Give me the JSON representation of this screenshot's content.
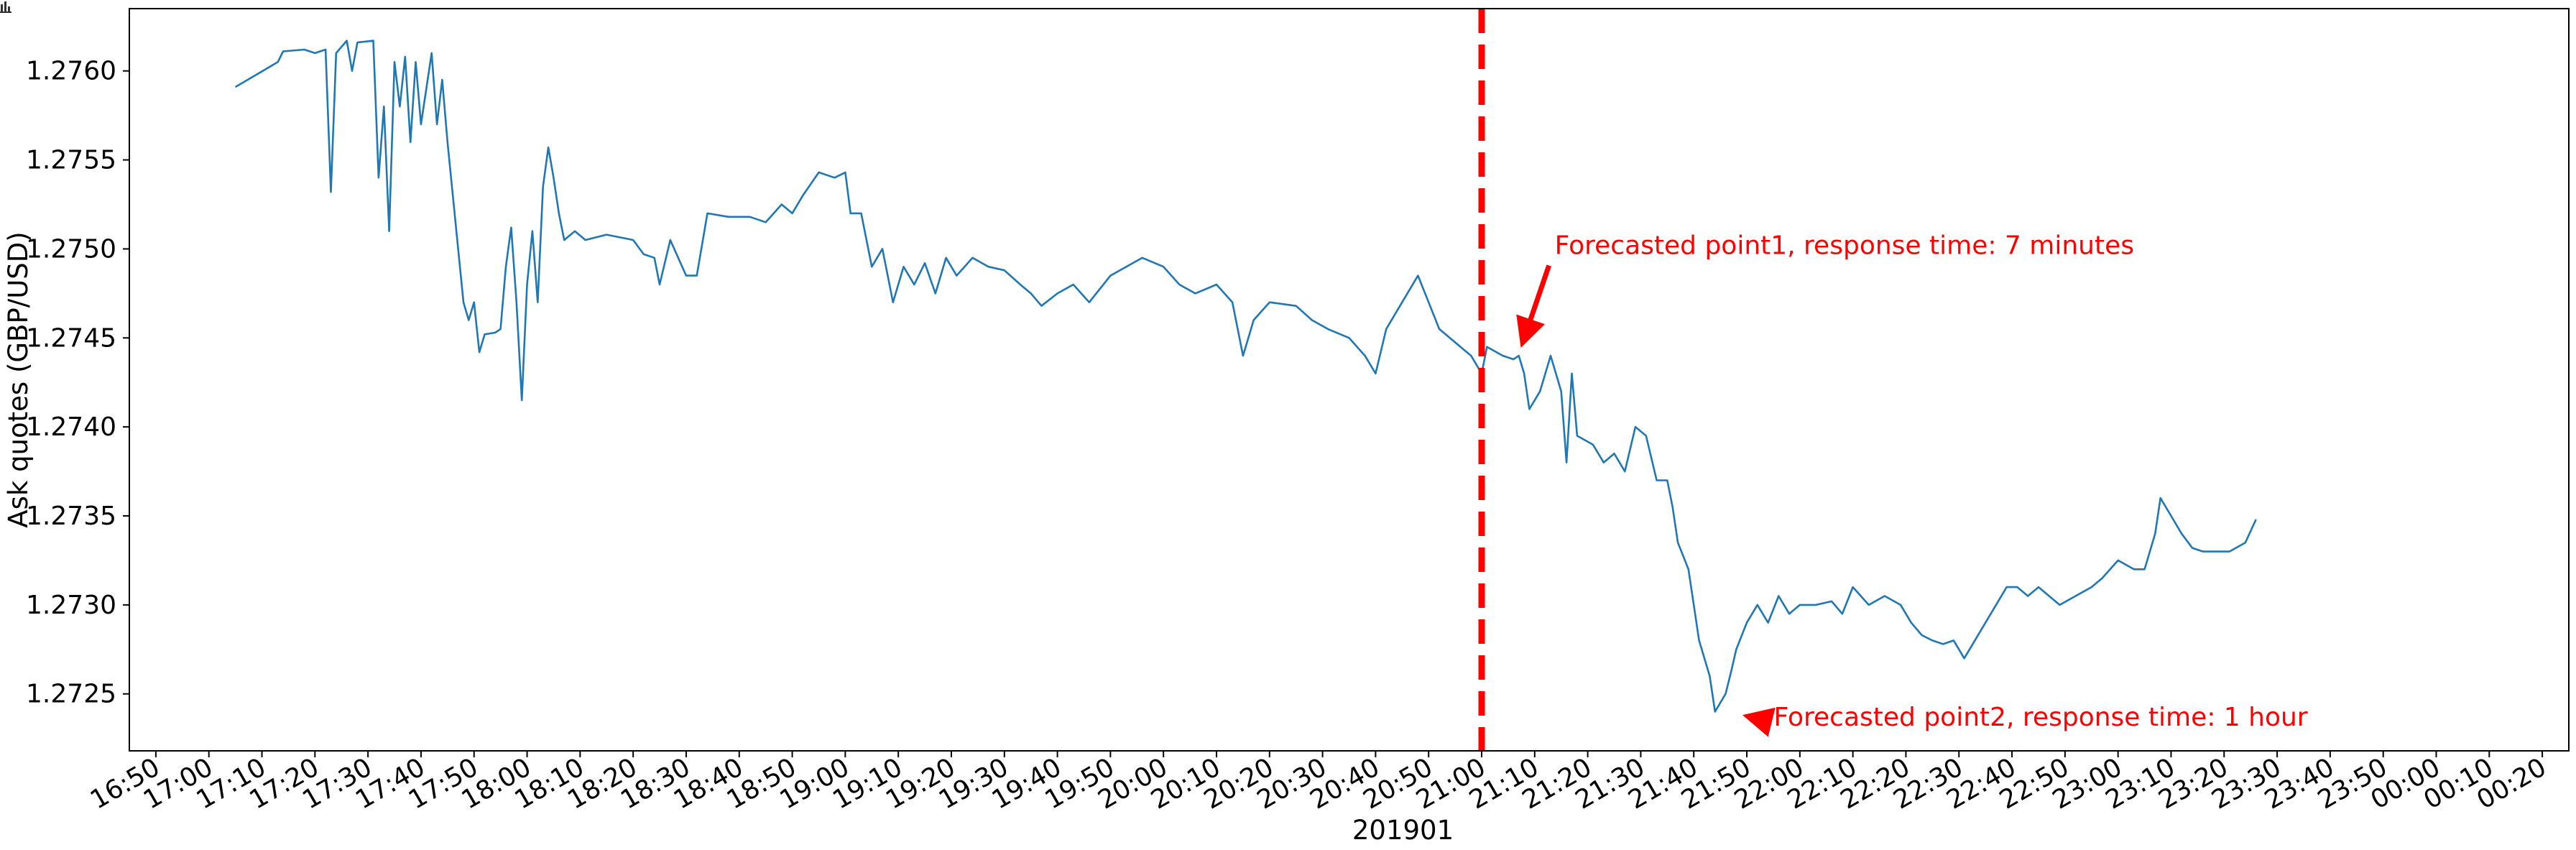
{
  "chart_data": {
    "type": "line",
    "title": "",
    "xlabel": "201901",
    "ylabel": "Ask quotes (GBP/USD)",
    "xlim": [
      "16:45",
      "00:25"
    ],
    "ylim": [
      1.27218,
      1.27635
    ],
    "grid": false,
    "x_ticks": [
      "16:50",
      "17:00",
      "17:10",
      "17:20",
      "17:30",
      "17:40",
      "17:50",
      "18:00",
      "18:10",
      "18:20",
      "18:30",
      "18:40",
      "18:50",
      "19:00",
      "19:10",
      "19:20",
      "19:30",
      "19:40",
      "19:50",
      "20:00",
      "20:10",
      "20:20",
      "20:30",
      "20:40",
      "20:50",
      "21:00",
      "21:10",
      "21:20",
      "21:30",
      "21:40",
      "21:50",
      "22:00",
      "22:10",
      "22:20",
      "22:30",
      "22:40",
      "22:50",
      "23:00",
      "23:10",
      "23:20",
      "23:30",
      "23:40",
      "23:50",
      "00:00",
      "00:10",
      "00:20"
    ],
    "y_ticks": [
      "1.2725",
      "1.2730",
      "1.2735",
      "1.2740",
      "1.2745",
      "1.2750",
      "1.2755",
      "1.2760"
    ],
    "series": [
      {
        "color": "#1f77b4",
        "points": [
          [
            "17:05",
            1.27591
          ],
          [
            "17:09",
            1.27598
          ],
          [
            "17:13",
            1.27605
          ],
          [
            "17:14",
            1.27611
          ],
          [
            "17:18",
            1.27612
          ],
          [
            "17:20",
            1.2761
          ],
          [
            "17:22",
            1.27612
          ],
          [
            "17:23",
            1.27532
          ],
          [
            "17:24",
            1.2761
          ],
          [
            "17:26",
            1.27617
          ],
          [
            "17:27",
            1.276
          ],
          [
            "17:28",
            1.27616
          ],
          [
            "17:31",
            1.27617
          ],
          [
            "17:32",
            1.2754
          ],
          [
            "17:33",
            1.2758
          ],
          [
            "17:34",
            1.2751
          ],
          [
            "17:35",
            1.27605
          ],
          [
            "17:36",
            1.2758
          ],
          [
            "17:37",
            1.27608
          ],
          [
            "17:38",
            1.2756
          ],
          [
            "17:39",
            1.27605
          ],
          [
            "17:40",
            1.2757
          ],
          [
            "17:41",
            1.2759
          ],
          [
            "17:42",
            1.2761
          ],
          [
            "17:43",
            1.2757
          ],
          [
            "17:44",
            1.27595
          ],
          [
            "17:45",
            1.2756
          ],
          [
            "17:46",
            1.2753
          ],
          [
            "17:47",
            1.275
          ],
          [
            "17:48",
            1.2747
          ],
          [
            "17:49",
            1.2746
          ],
          [
            "17:50",
            1.2747
          ],
          [
            "17:51",
            1.27442
          ],
          [
            "17:52",
            1.27452
          ],
          [
            "17:54",
            1.27453
          ],
          [
            "17:55",
            1.27455
          ],
          [
            "17:56",
            1.2749
          ],
          [
            "17:57",
            1.27512
          ],
          [
            "17:58",
            1.2747
          ],
          [
            "17:59",
            1.27415
          ],
          [
            "18:00",
            1.2748
          ],
          [
            "18:01",
            1.2751
          ],
          [
            "18:02",
            1.2747
          ],
          [
            "18:03",
            1.27535
          ],
          [
            "18:04",
            1.27557
          ],
          [
            "18:05",
            1.2754
          ],
          [
            "18:06",
            1.2752
          ],
          [
            "18:07",
            1.27505
          ],
          [
            "18:09",
            1.2751
          ],
          [
            "18:11",
            1.27505
          ],
          [
            "18:15",
            1.27508
          ],
          [
            "18:20",
            1.27505
          ],
          [
            "18:22",
            1.27497
          ],
          [
            "18:24",
            1.27495
          ],
          [
            "18:25",
            1.2748
          ],
          [
            "18:27",
            1.27505
          ],
          [
            "18:30",
            1.27485
          ],
          [
            "18:32",
            1.27485
          ],
          [
            "18:34",
            1.2752
          ],
          [
            "18:38",
            1.27518
          ],
          [
            "18:42",
            1.27518
          ],
          [
            "18:45",
            1.27515
          ],
          [
            "18:48",
            1.27525
          ],
          [
            "18:50",
            1.2752
          ],
          [
            "18:52",
            1.2753
          ],
          [
            "18:55",
            1.27543
          ],
          [
            "18:58",
            1.2754
          ],
          [
            "19:00",
            1.27543
          ],
          [
            "19:01",
            1.2752
          ],
          [
            "19:03",
            1.2752
          ],
          [
            "19:05",
            1.2749
          ],
          [
            "19:07",
            1.275
          ],
          [
            "19:09",
            1.2747
          ],
          [
            "19:11",
            1.2749
          ],
          [
            "19:13",
            1.2748
          ],
          [
            "19:15",
            1.27492
          ],
          [
            "19:17",
            1.27475
          ],
          [
            "19:19",
            1.27495
          ],
          [
            "19:21",
            1.27485
          ],
          [
            "19:24",
            1.27495
          ],
          [
            "19:27",
            1.2749
          ],
          [
            "19:30",
            1.27488
          ],
          [
            "19:33",
            1.2748
          ],
          [
            "19:35",
            1.27475
          ],
          [
            "19:37",
            1.27468
          ],
          [
            "19:40",
            1.27475
          ],
          [
            "19:43",
            1.2748
          ],
          [
            "19:46",
            1.2747
          ],
          [
            "19:50",
            1.27485
          ],
          [
            "19:53",
            1.2749
          ],
          [
            "19:56",
            1.27495
          ],
          [
            "20:00",
            1.2749
          ],
          [
            "20:03",
            1.2748
          ],
          [
            "20:06",
            1.27475
          ],
          [
            "20:10",
            1.2748
          ],
          [
            "20:13",
            1.2747
          ],
          [
            "20:15",
            1.2744
          ],
          [
            "20:17",
            1.2746
          ],
          [
            "20:20",
            1.2747
          ],
          [
            "20:25",
            1.27468
          ],
          [
            "20:28",
            1.2746
          ],
          [
            "20:31",
            1.27455
          ],
          [
            "20:35",
            1.2745
          ],
          [
            "20:38",
            1.2744
          ],
          [
            "20:40",
            1.2743
          ],
          [
            "20:42",
            1.27455
          ],
          [
            "20:45",
            1.2747
          ],
          [
            "20:48",
            1.27485
          ],
          [
            "20:50",
            1.2747
          ],
          [
            "20:52",
            1.27455
          ],
          [
            "20:54",
            1.2745
          ],
          [
            "20:56",
            1.27445
          ],
          [
            "20:58",
            1.2744
          ],
          [
            "21:00",
            1.2743
          ],
          [
            "21:01",
            1.27445
          ],
          [
            "21:04",
            1.2744
          ],
          [
            "21:06",
            1.27438
          ],
          [
            "21:07",
            1.2744
          ],
          [
            "21:08",
            1.2743
          ],
          [
            "21:09",
            1.2741
          ],
          [
            "21:11",
            1.2742
          ],
          [
            "21:13",
            1.2744
          ],
          [
            "21:15",
            1.2742
          ],
          [
            "21:16",
            1.2738
          ],
          [
            "21:17",
            1.2743
          ],
          [
            "21:18",
            1.27395
          ],
          [
            "21:21",
            1.2739
          ],
          [
            "21:23",
            1.2738
          ],
          [
            "21:25",
            1.27385
          ],
          [
            "21:27",
            1.27375
          ],
          [
            "21:29",
            1.274
          ],
          [
            "21:31",
            1.27395
          ],
          [
            "21:33",
            1.2737
          ],
          [
            "21:35",
            1.2737
          ],
          [
            "21:36",
            1.27355
          ],
          [
            "21:37",
            1.27335
          ],
          [
            "21:39",
            1.2732
          ],
          [
            "21:41",
            1.2728
          ],
          [
            "21:43",
            1.2726
          ],
          [
            "21:44",
            1.2724
          ],
          [
            "21:45",
            1.27245
          ],
          [
            "21:46",
            1.2725
          ],
          [
            "21:47",
            1.27262
          ],
          [
            "21:48",
            1.27275
          ],
          [
            "21:50",
            1.2729
          ],
          [
            "21:52",
            1.273
          ],
          [
            "21:54",
            1.2729
          ],
          [
            "21:56",
            1.27305
          ],
          [
            "21:58",
            1.27295
          ],
          [
            "22:00",
            1.273
          ],
          [
            "22:03",
            1.273
          ],
          [
            "22:06",
            1.27302
          ],
          [
            "22:08",
            1.27295
          ],
          [
            "22:10",
            1.2731
          ],
          [
            "22:13",
            1.273
          ],
          [
            "22:16",
            1.27305
          ],
          [
            "22:19",
            1.273
          ],
          [
            "22:21",
            1.2729
          ],
          [
            "22:23",
            1.27283
          ],
          [
            "22:25",
            1.2728
          ],
          [
            "22:27",
            1.27278
          ],
          [
            "22:29",
            1.2728
          ],
          [
            "22:31",
            1.2727
          ],
          [
            "22:33",
            1.2728
          ],
          [
            "22:35",
            1.2729
          ],
          [
            "22:37",
            1.273
          ],
          [
            "22:39",
            1.2731
          ],
          [
            "22:41",
            1.2731
          ],
          [
            "22:43",
            1.27305
          ],
          [
            "22:45",
            1.2731
          ],
          [
            "22:47",
            1.27305
          ],
          [
            "22:49",
            1.273
          ],
          [
            "22:52",
            1.27305
          ],
          [
            "22:55",
            1.2731
          ],
          [
            "22:57",
            1.27315
          ],
          [
            "23:00",
            1.27325
          ],
          [
            "23:03",
            1.2732
          ],
          [
            "23:05",
            1.2732
          ],
          [
            "23:07",
            1.2734
          ],
          [
            "23:08",
            1.2736
          ],
          [
            "23:10",
            1.2735
          ],
          [
            "23:12",
            1.2734
          ],
          [
            "23:14",
            1.27332
          ],
          [
            "23:16",
            1.2733
          ],
          [
            "23:18",
            1.2733
          ],
          [
            "23:21",
            1.2733
          ],
          [
            "23:24",
            1.27335
          ],
          [
            "23:26",
            1.27348
          ]
        ]
      }
    ],
    "vertical_line": {
      "x": "21:00",
      "color": "#ff0000",
      "style": "dashed"
    },
    "annotations": [
      {
        "text": "Forecasted point1, response time: 7 minutes",
        "point": [
          "21:07",
          1.27441
        ],
        "text_pos": [
          "21:07",
          1.27502
        ],
        "color": "#ff0000"
      },
      {
        "text": "Forecasted point2, response time: 1 hour",
        "point": [
          "21:48",
          1.27239
        ],
        "text_pos": [
          "21:54",
          1.27237
        ],
        "color": "#ff0000"
      }
    ]
  }
}
